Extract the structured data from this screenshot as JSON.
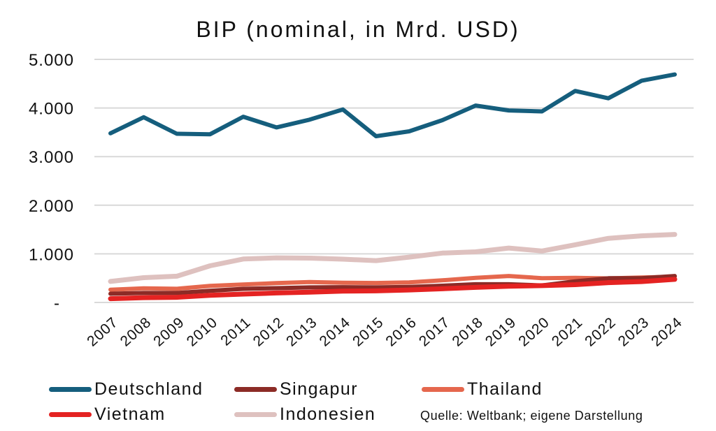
{
  "chart_data": {
    "type": "line",
    "title": "BIP (nominal, in Mrd. USD)",
    "x": [
      "2007",
      "2008",
      "2009",
      "2010",
      "2011",
      "2012",
      "2013",
      "2014",
      "2015",
      "2016",
      "2017",
      "2018",
      "2019",
      "2020",
      "2021",
      "2022",
      "2023",
      "2024"
    ],
    "series": [
      {
        "name": "Deutschland",
        "color": "#155E7D",
        "width": 6,
        "values": [
          3480,
          3810,
          3470,
          3460,
          3820,
          3600,
          3760,
          3970,
          3420,
          3520,
          3750,
          4050,
          3950,
          3930,
          4350,
          4200,
          4560,
          4690
        ]
      },
      {
        "name": "Singapur",
        "color": "#8C2B26",
        "width": 6,
        "values": [
          180,
          195,
          195,
          240,
          280,
          295,
          310,
          315,
          310,
          320,
          345,
          375,
          375,
          350,
          435,
          498,
          500,
          545
        ]
      },
      {
        "name": "Thailand",
        "color": "#E5674D",
        "width": 6,
        "values": [
          263,
          291,
          281,
          341,
          371,
          398,
          420,
          407,
          401,
          413,
          456,
          507,
          544,
          500,
          506,
          495,
          515,
          530
        ]
      },
      {
        "name": "Vietnam",
        "color": "#E42322",
        "width": 7,
        "values": [
          77,
          99,
          106,
          147,
          172,
          195,
          213,
          233,
          239,
          257,
          281,
          310,
          334,
          346,
          366,
          408,
          430,
          476
        ]
      },
      {
        "name": "Indonesien",
        "color": "#DEC1BF",
        "width": 7,
        "values": [
          432,
          510,
          540,
          755,
          893,
          918,
          913,
          891,
          861,
          932,
          1016,
          1042,
          1119,
          1059,
          1187,
          1319,
          1371,
          1400
        ]
      }
    ],
    "y_axis": {
      "ticks": [
        {
          "label": "5.000",
          "value": 5000
        },
        {
          "label": "4.000",
          "value": 4000
        },
        {
          "label": "3.000",
          "value": 3000
        },
        {
          "label": "2.000",
          "value": 2000
        },
        {
          "label": "1.000",
          "value": 1000
        },
        {
          "label": "-",
          "value": 0
        }
      ],
      "ylim": [
        0,
        5000
      ]
    },
    "xlabel": "",
    "ylabel": "",
    "grid": "horizontal",
    "grid_color": "#D9D9D9",
    "legend_position": "bottom",
    "source_note": "Quelle: Weltbank; eigene Darstellung"
  }
}
